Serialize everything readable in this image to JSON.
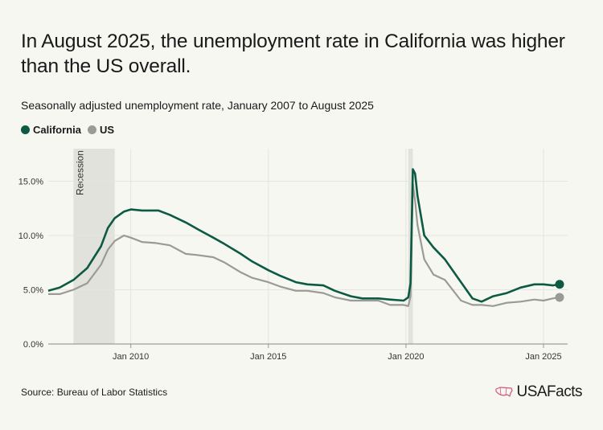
{
  "title": "In August 2025, the unemployment rate in California was higher than the US overall.",
  "subtitle": "Seasonally adjusted unemployment rate, January 2007 to August 2025",
  "source": "Source: Bureau of Labor Statistics",
  "logo": "USAFacts",
  "colors": {
    "california": "#0d5a44",
    "us": "#9a9a96",
    "shade": "#e2e2dc",
    "grid": "#e5e5df"
  },
  "chart_data": {
    "type": "line",
    "legend_placement": "top-left",
    "grid": true,
    "xlabel": "",
    "ylabel": "",
    "ylim": [
      0,
      18
    ],
    "xlim": [
      "2007-01",
      "2025-08"
    ],
    "yticks": [
      0,
      5,
      10,
      15
    ],
    "ytick_labels": [
      "0.0%",
      "5.0%",
      "10.0%",
      "15.0%"
    ],
    "xticks": [
      "2010-01",
      "2015-01",
      "2020-01",
      "2025-01"
    ],
    "xtick_labels": [
      "Jan 2010",
      "Jan 2015",
      "Jan 2020",
      "Jan 2025"
    ],
    "shaded_regions": [
      {
        "label": "Recession",
        "start": "2007-12",
        "end": "2009-06"
      },
      {
        "label": "",
        "start": "2020-02",
        "end": "2020-04"
      }
    ],
    "series": [
      {
        "name": "California",
        "points": [
          [
            "2007-01",
            4.9
          ],
          [
            "2007-06",
            5.2
          ],
          [
            "2007-12",
            5.9
          ],
          [
            "2008-06",
            7.0
          ],
          [
            "2008-12",
            9.0
          ],
          [
            "2009-03",
            10.7
          ],
          [
            "2009-06",
            11.6
          ],
          [
            "2009-10",
            12.2
          ],
          [
            "2010-01",
            12.4
          ],
          [
            "2010-06",
            12.3
          ],
          [
            "2011-01",
            12.3
          ],
          [
            "2011-06",
            11.9
          ],
          [
            "2012-01",
            11.2
          ],
          [
            "2012-06",
            10.6
          ],
          [
            "2013-01",
            9.8
          ],
          [
            "2013-06",
            9.2
          ],
          [
            "2014-01",
            8.3
          ],
          [
            "2014-06",
            7.6
          ],
          [
            "2015-01",
            6.8
          ],
          [
            "2015-06",
            6.3
          ],
          [
            "2016-01",
            5.7
          ],
          [
            "2016-06",
            5.5
          ],
          [
            "2017-01",
            5.4
          ],
          [
            "2017-06",
            4.9
          ],
          [
            "2018-01",
            4.4
          ],
          [
            "2018-06",
            4.2
          ],
          [
            "2019-01",
            4.2
          ],
          [
            "2019-06",
            4.1
          ],
          [
            "2019-12",
            4.0
          ],
          [
            "2020-02",
            4.3
          ],
          [
            "2020-03",
            5.6
          ],
          [
            "2020-04",
            16.1
          ],
          [
            "2020-05",
            15.7
          ],
          [
            "2020-06",
            13.7
          ],
          [
            "2020-09",
            10.0
          ],
          [
            "2021-01",
            8.9
          ],
          [
            "2021-06",
            7.8
          ],
          [
            "2022-01",
            5.7
          ],
          [
            "2022-06",
            4.2
          ],
          [
            "2022-10",
            3.9
          ],
          [
            "2023-03",
            4.4
          ],
          [
            "2023-09",
            4.7
          ],
          [
            "2024-03",
            5.2
          ],
          [
            "2024-09",
            5.5
          ],
          [
            "2025-01",
            5.5
          ],
          [
            "2025-05",
            5.4
          ],
          [
            "2025-08",
            5.5
          ]
        ]
      },
      {
        "name": "US",
        "points": [
          [
            "2007-01",
            4.6
          ],
          [
            "2007-06",
            4.6
          ],
          [
            "2007-12",
            5.0
          ],
          [
            "2008-06",
            5.6
          ],
          [
            "2008-12",
            7.3
          ],
          [
            "2009-03",
            8.7
          ],
          [
            "2009-06",
            9.5
          ],
          [
            "2009-10",
            10.0
          ],
          [
            "2010-01",
            9.8
          ],
          [
            "2010-06",
            9.4
          ],
          [
            "2010-12",
            9.3
          ],
          [
            "2011-06",
            9.1
          ],
          [
            "2012-01",
            8.3
          ],
          [
            "2012-06",
            8.2
          ],
          [
            "2013-01",
            8.0
          ],
          [
            "2013-06",
            7.5
          ],
          [
            "2014-01",
            6.6
          ],
          [
            "2014-06",
            6.1
          ],
          [
            "2015-01",
            5.7
          ],
          [
            "2015-06",
            5.3
          ],
          [
            "2016-01",
            4.9
          ],
          [
            "2016-06",
            4.9
          ],
          [
            "2017-01",
            4.7
          ],
          [
            "2017-06",
            4.3
          ],
          [
            "2018-01",
            4.0
          ],
          [
            "2018-06",
            4.0
          ],
          [
            "2019-01",
            4.0
          ],
          [
            "2019-06",
            3.6
          ],
          [
            "2019-12",
            3.6
          ],
          [
            "2020-02",
            3.5
          ],
          [
            "2020-03",
            4.4
          ],
          [
            "2020-04",
            14.8
          ],
          [
            "2020-05",
            13.2
          ],
          [
            "2020-06",
            11.0
          ],
          [
            "2020-09",
            7.8
          ],
          [
            "2021-01",
            6.4
          ],
          [
            "2021-06",
            5.9
          ],
          [
            "2022-01",
            4.0
          ],
          [
            "2022-06",
            3.6
          ],
          [
            "2022-10",
            3.6
          ],
          [
            "2023-03",
            3.5
          ],
          [
            "2023-09",
            3.8
          ],
          [
            "2024-03",
            3.9
          ],
          [
            "2024-09",
            4.1
          ],
          [
            "2025-01",
            4.0
          ],
          [
            "2025-05",
            4.2
          ],
          [
            "2025-08",
            4.3
          ]
        ]
      }
    ]
  }
}
